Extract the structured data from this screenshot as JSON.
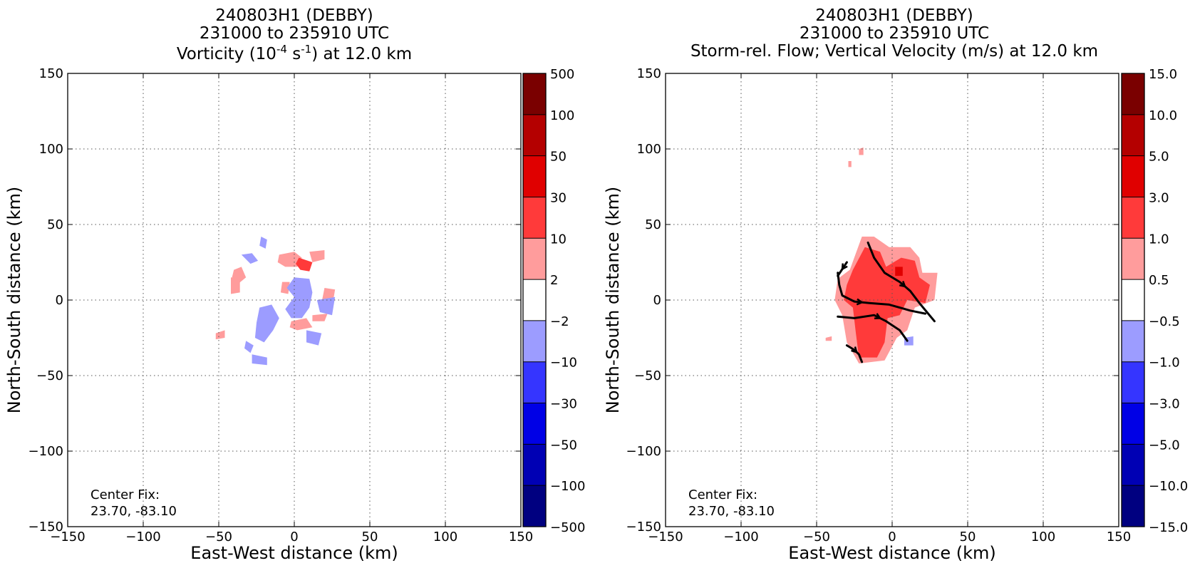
{
  "chart_data": [
    {
      "type": "heatmap",
      "title_lines": [
        "240803H1 (DEBBY)",
        "231000 to 235910 UTC"
      ],
      "title_var_parts": [
        "Vorticity (10",
        "-4",
        " s",
        "-1",
        ") at 12.0 km"
      ],
      "xlabel": "East-West distance (km)",
      "ylabel": "North-South distance (km)",
      "xlim": [
        -150,
        150
      ],
      "ylim": [
        -150,
        150
      ],
      "xticks": [
        -150,
        -100,
        -50,
        0,
        50,
        100,
        150
      ],
      "yticks": [
        -150,
        -100,
        -50,
        0,
        50,
        100,
        150
      ],
      "xtick_labels": [
        "−150",
        "−100",
        "−50",
        "0",
        "50",
        "100",
        "150"
      ],
      "ytick_labels": [
        "−150",
        "−100",
        "−50",
        "0",
        "50",
        "100",
        "150"
      ],
      "grid": true,
      "annotation_line1": "Center Fix:",
      "annotation_line2": "23.70, -83.10",
      "colorbar": {
        "labels": [
          "500",
          "100",
          "50",
          "30",
          "10",
          "2",
          "−2",
          "−10",
          "−30",
          "−50",
          "−100",
          "−500"
        ],
        "colors": [
          "#7a0000",
          "#b40000",
          "#e00000",
          "#ff3a3a",
          "#ff9c9c",
          "#ffffff",
          "#9c9cff",
          "#3535ff",
          "#0000e6",
          "#0000b4",
          "#000080"
        ]
      },
      "regions": [
        {
          "level": 2,
          "color": "#ff9c9c",
          "points": [
            [
              -40,
              20
            ],
            [
              -35,
              22
            ],
            [
              -32,
              15
            ],
            [
              -38,
              10
            ],
            [
              -42,
              12
            ]
          ]
        },
        {
          "level": 2,
          "color": "#ff9c9c",
          "points": [
            [
              -42,
              15
            ],
            [
              -36,
              14
            ],
            [
              -36,
              5
            ],
            [
              -42,
              4
            ]
          ]
        },
        {
          "level": 2,
          "color": "#ff9c9c",
          "points": [
            [
              -10,
              30
            ],
            [
              0,
              32
            ],
            [
              5,
              28
            ],
            [
              2,
              22
            ],
            [
              -6,
              22
            ],
            [
              -11,
              25
            ]
          ]
        },
        {
          "level": 2,
          "color": "#ff9c9c",
          "points": [
            [
              10,
              32
            ],
            [
              20,
              33
            ],
            [
              20,
              27
            ],
            [
              12,
              25
            ]
          ]
        },
        {
          "level": 2,
          "color": "#ff9c9c",
          "points": [
            [
              20,
              8
            ],
            [
              27,
              7
            ],
            [
              25,
              -5
            ],
            [
              18,
              -2
            ]
          ]
        },
        {
          "level": 2,
          "color": "#ff9c9c",
          "points": [
            [
              -2,
              -14
            ],
            [
              8,
              -12
            ],
            [
              12,
              -18
            ],
            [
              2,
              -20
            ],
            [
              -3,
              -18
            ]
          ]
        },
        {
          "level": 2,
          "color": "#ff9c9c",
          "points": [
            [
              -8,
              12
            ],
            [
              -3,
              12
            ],
            [
              -4,
              4
            ],
            [
              -9,
              5
            ]
          ]
        },
        {
          "level": 2,
          "color": "#ff9c9c",
          "points": [
            [
              -52,
              -22
            ],
            [
              -46,
              -20
            ],
            [
              -46,
              -25
            ],
            [
              -52,
              -26
            ]
          ]
        },
        {
          "level": 2,
          "color": "#ff9c9c",
          "points": [
            [
              12,
              -10
            ],
            [
              22,
              -9
            ],
            [
              20,
              -14
            ],
            [
              12,
              -14
            ]
          ]
        },
        {
          "level": 10,
          "color": "#ff3a3a",
          "points": [
            [
              3,
              28
            ],
            [
              12,
              25
            ],
            [
              10,
              19
            ],
            [
              4,
              20
            ],
            [
              1,
              24
            ]
          ]
        },
        {
          "level": -2,
          "color": "#9c9cff",
          "points": [
            [
              -35,
              30
            ],
            [
              -28,
              31
            ],
            [
              -24,
              26
            ],
            [
              -29,
              24
            ]
          ]
        },
        {
          "level": -2,
          "color": "#9c9cff",
          "points": [
            [
              -22,
              42
            ],
            [
              -18,
              40
            ],
            [
              -19,
              34
            ],
            [
              -23,
              36
            ]
          ]
        },
        {
          "level": -2,
          "color": "#9c9cff",
          "points": [
            [
              -5,
              8
            ],
            [
              0,
              15
            ],
            [
              10,
              14
            ],
            [
              12,
              5
            ],
            [
              10,
              -5
            ],
            [
              5,
              -12
            ],
            [
              -2,
              -12
            ],
            [
              -6,
              -6
            ],
            [
              0,
              2
            ]
          ]
        },
        {
          "level": -2,
          "color": "#9c9cff",
          "points": [
            [
              -23,
              -5
            ],
            [
              -15,
              -3
            ],
            [
              -10,
              -12
            ],
            [
              -14,
              -20
            ],
            [
              -20,
              -28
            ],
            [
              -26,
              -25
            ],
            [
              -25,
              -15
            ]
          ]
        },
        {
          "level": -2,
          "color": "#9c9cff",
          "points": [
            [
              15,
              0
            ],
            [
              27,
              2
            ],
            [
              25,
              -10
            ],
            [
              17,
              -8
            ]
          ]
        },
        {
          "level": -2,
          "color": "#9c9cff",
          "points": [
            [
              8,
              -20
            ],
            [
              18,
              -22
            ],
            [
              16,
              -30
            ],
            [
              8,
              -28
            ]
          ]
        },
        {
          "level": -2,
          "color": "#9c9cff",
          "points": [
            [
              -28,
              -36
            ],
            [
              -18,
              -38
            ],
            [
              -18,
              -43
            ],
            [
              -28,
              -42
            ]
          ]
        },
        {
          "level": -2,
          "color": "#9c9cff",
          "points": [
            [
              -32,
              -27
            ],
            [
              -27,
              -30
            ],
            [
              -29,
              -35
            ],
            [
              -33,
              -32
            ]
          ]
        }
      ]
    },
    {
      "type": "heatmap",
      "title_lines": [
        "240803H1 (DEBBY)",
        "231000 to 235910 UTC",
        "Storm-rel. Flow; Vertical Velocity (m/s) at 12.0 km"
      ],
      "xlabel": "East-West distance (km)",
      "ylabel": "North-South distance (km)",
      "xlim": [
        -150,
        150
      ],
      "ylim": [
        -150,
        150
      ],
      "xticks": [
        -150,
        -100,
        -50,
        0,
        50,
        100,
        150
      ],
      "yticks": [
        -150,
        -100,
        -50,
        0,
        50,
        100,
        150
      ],
      "xtick_labels": [
        "−150",
        "−100",
        "−50",
        "0",
        "50",
        "100",
        "150"
      ],
      "ytick_labels": [
        "−150",
        "−100",
        "−50",
        "0",
        "50",
        "100",
        "150"
      ],
      "grid": true,
      "annotation_line1": "Center Fix:",
      "annotation_line2": "23.70, -83.10",
      "colorbar": {
        "labels": [
          "15.0",
          "10.0",
          "5.0",
          "3.0",
          "1.0",
          "0.5",
          "−0.5",
          "−1.0",
          "−3.0",
          "−5.0",
          "−10.0",
          "−15.0"
        ],
        "colors": [
          "#7a0000",
          "#b40000",
          "#e00000",
          "#ff3a3a",
          "#ff9c9c",
          "#ffffff",
          "#9c9cff",
          "#3535ff",
          "#0000e6",
          "#0000b4",
          "#000080"
        ]
      },
      "regions": [
        {
          "level": 0.5,
          "color": "#ff9c9c",
          "points": [
            [
              -28,
              20
            ],
            [
              -20,
              42
            ],
            [
              -12,
              42
            ],
            [
              -2,
              35
            ],
            [
              12,
              35
            ],
            [
              18,
              28
            ],
            [
              20,
              18
            ],
            [
              30,
              18
            ],
            [
              28,
              0
            ],
            [
              15,
              -5
            ],
            [
              10,
              -20
            ],
            [
              3,
              -25
            ],
            [
              -5,
              -40
            ],
            [
              -22,
              -42
            ],
            [
              -30,
              -28
            ],
            [
              -33,
              -10
            ],
            [
              -38,
              0
            ],
            [
              -36,
              14
            ]
          ]
        },
        {
          "level": 0.5,
          "color": "#ff9c9c",
          "points": [
            [
              -22,
              100
            ],
            [
              -19,
              101
            ],
            [
              -19,
              96
            ],
            [
              -22,
              96
            ]
          ]
        },
        {
          "level": 0.5,
          "color": "#ff9c9c",
          "points": [
            [
              -29,
              92
            ],
            [
              -27,
              92
            ],
            [
              -27,
              88
            ],
            [
              -29,
              88
            ]
          ]
        },
        {
          "level": 0.5,
          "color": "#ff9c9c",
          "points": [
            [
              -44,
              -25
            ],
            [
              -40,
              -24
            ],
            [
              -40,
              -27
            ],
            [
              -44,
              -27
            ]
          ]
        },
        {
          "level": 1.0,
          "color": "#ff3a3a",
          "points": [
            [
              -26,
              20
            ],
            [
              -18,
              35
            ],
            [
              -8,
              32
            ],
            [
              -4,
              22
            ],
            [
              6,
              28
            ],
            [
              15,
              26
            ],
            [
              18,
              15
            ],
            [
              25,
              10
            ],
            [
              22,
              -2
            ],
            [
              10,
              0
            ],
            [
              5,
              -10
            ],
            [
              -3,
              -12
            ],
            [
              -5,
              -28
            ],
            [
              -10,
              -38
            ],
            [
              -22,
              -38
            ],
            [
              -24,
              -22
            ],
            [
              -26,
              -5
            ],
            [
              -32,
              0
            ],
            [
              -30,
              10
            ]
          ]
        },
        {
          "level": 3.0,
          "color": "#e00000",
          "points": [
            [
              2,
              22
            ],
            [
              7,
              22
            ],
            [
              7,
              16
            ],
            [
              2,
              16
            ]
          ]
        },
        {
          "level": -0.5,
          "color": "#9c9cff",
          "points": [
            [
              8,
              -25
            ],
            [
              14,
              -24
            ],
            [
              14,
              -30
            ],
            [
              8,
              -30
            ]
          ]
        }
      ],
      "streamlines": [
        [
          [
            -16,
            38
          ],
          [
            -12,
            28
          ],
          [
            -5,
            18
          ],
          [
            5,
            12
          ],
          [
            12,
            6
          ],
          [
            18,
            -2
          ],
          [
            23,
            -8
          ],
          [
            28,
            -14
          ]
        ],
        [
          [
            -36,
            18
          ],
          [
            -35,
            10
          ],
          [
            -33,
            3
          ],
          [
            -25,
            -1
          ],
          [
            -15,
            -2
          ],
          [
            -2,
            -3
          ],
          [
            12,
            -7
          ],
          [
            22,
            -9
          ]
        ],
        [
          [
            -30,
            25
          ],
          [
            -36,
            16
          ]
        ],
        [
          [
            -36,
            -11
          ],
          [
            -25,
            -12
          ],
          [
            -12,
            -10
          ],
          [
            -4,
            -14
          ],
          [
            5,
            -20
          ],
          [
            10,
            -27
          ]
        ],
        [
          [
            -30,
            -30
          ],
          [
            -25,
            -33
          ],
          [
            -22,
            -36
          ],
          [
            -20,
            -41
          ]
        ]
      ]
    }
  ]
}
